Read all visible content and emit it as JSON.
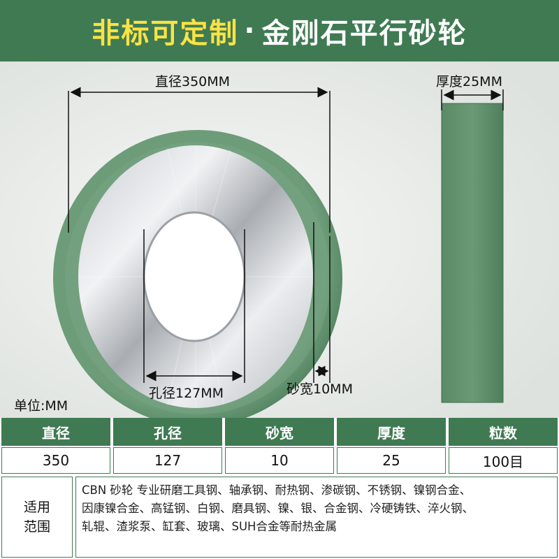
{
  "banner": {
    "title_yellow": "非标可定制",
    "separator": "·",
    "title_white": "金刚石平行砂轮"
  },
  "labels": {
    "diameter": "直径350MM",
    "thickness": "厚度25MM",
    "hole": "孔径127MM",
    "width": "砂宽10MM",
    "unit": "单位:MM"
  },
  "spec_table": {
    "headers": [
      "直径",
      "孔径",
      "砂宽",
      "厚度",
      "粒数"
    ],
    "values": [
      "350",
      "127",
      "10",
      "25",
      "100目"
    ]
  },
  "usage": {
    "label_line1": "适用",
    "label_line2": "范围",
    "lines": [
      "CBN 砂轮  专业研磨工具钢、轴承钢、耐热钢、渗碳钢、不锈钢、镍钢合金、",
      "因康镍合金、高锰钢、白钢、磨具钢、镍、银、合金钢、冷硬铸铁、淬火钢、",
      "轧辊、渣浆泵、缸套、玻璃、SUH合金等耐热金属"
    ]
  },
  "colors": {
    "banner_green": "#3f7a52",
    "accent_yellow": "#fbe245",
    "abrasive_green": "#5e8f6b"
  }
}
